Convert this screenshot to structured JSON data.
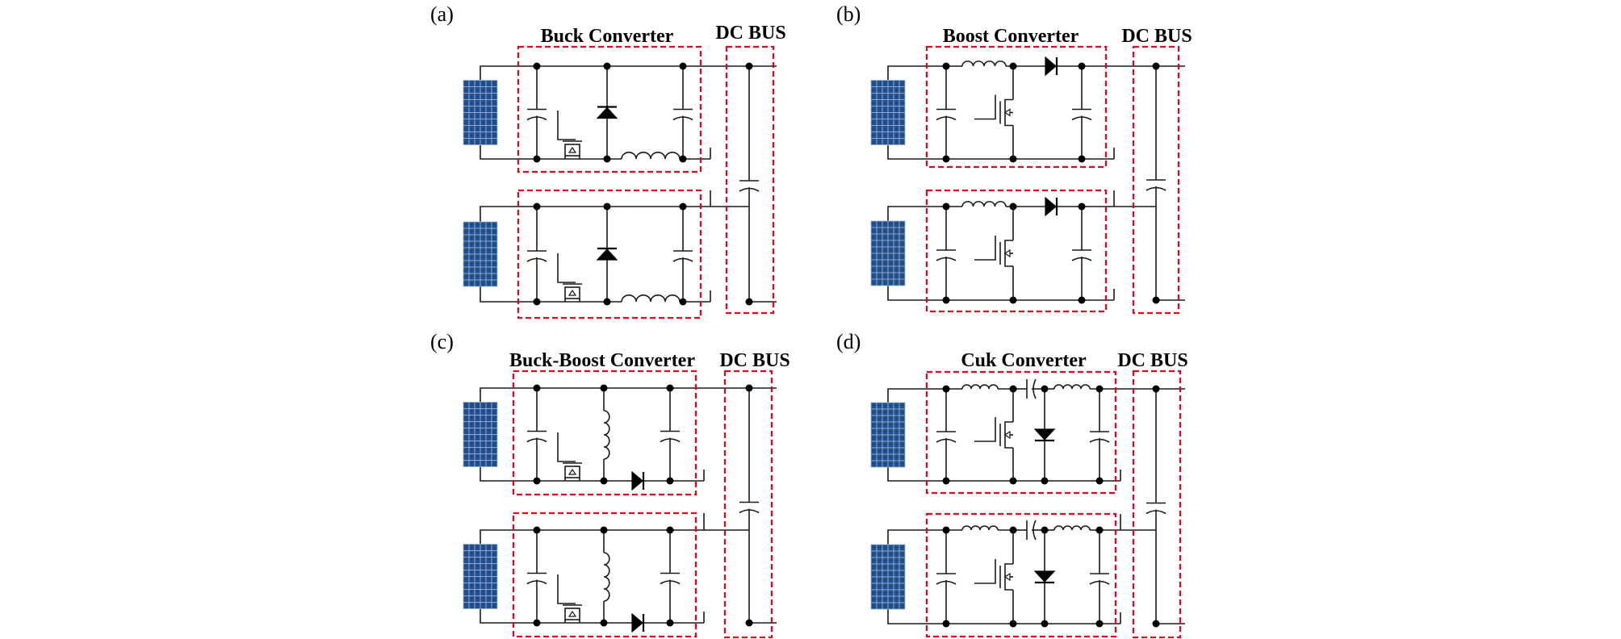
{
  "panels": [
    {
      "tag": "(a)",
      "title": "Buck Converter",
      "bus": "DC BUS"
    },
    {
      "tag": "(b)",
      "title": "Boost Converter",
      "bus": "DC BUS"
    },
    {
      "tag": "(c)",
      "title": "Buck-Boost Converter",
      "bus": "DC BUS"
    },
    {
      "tag": "(d)",
      "title": "Cuk Converter",
      "bus": "DC BUS"
    }
  ],
  "colors": {
    "boundary": "#e8001c",
    "pv_panel": "#1f4e8c",
    "wire": "#1a1a1a"
  }
}
